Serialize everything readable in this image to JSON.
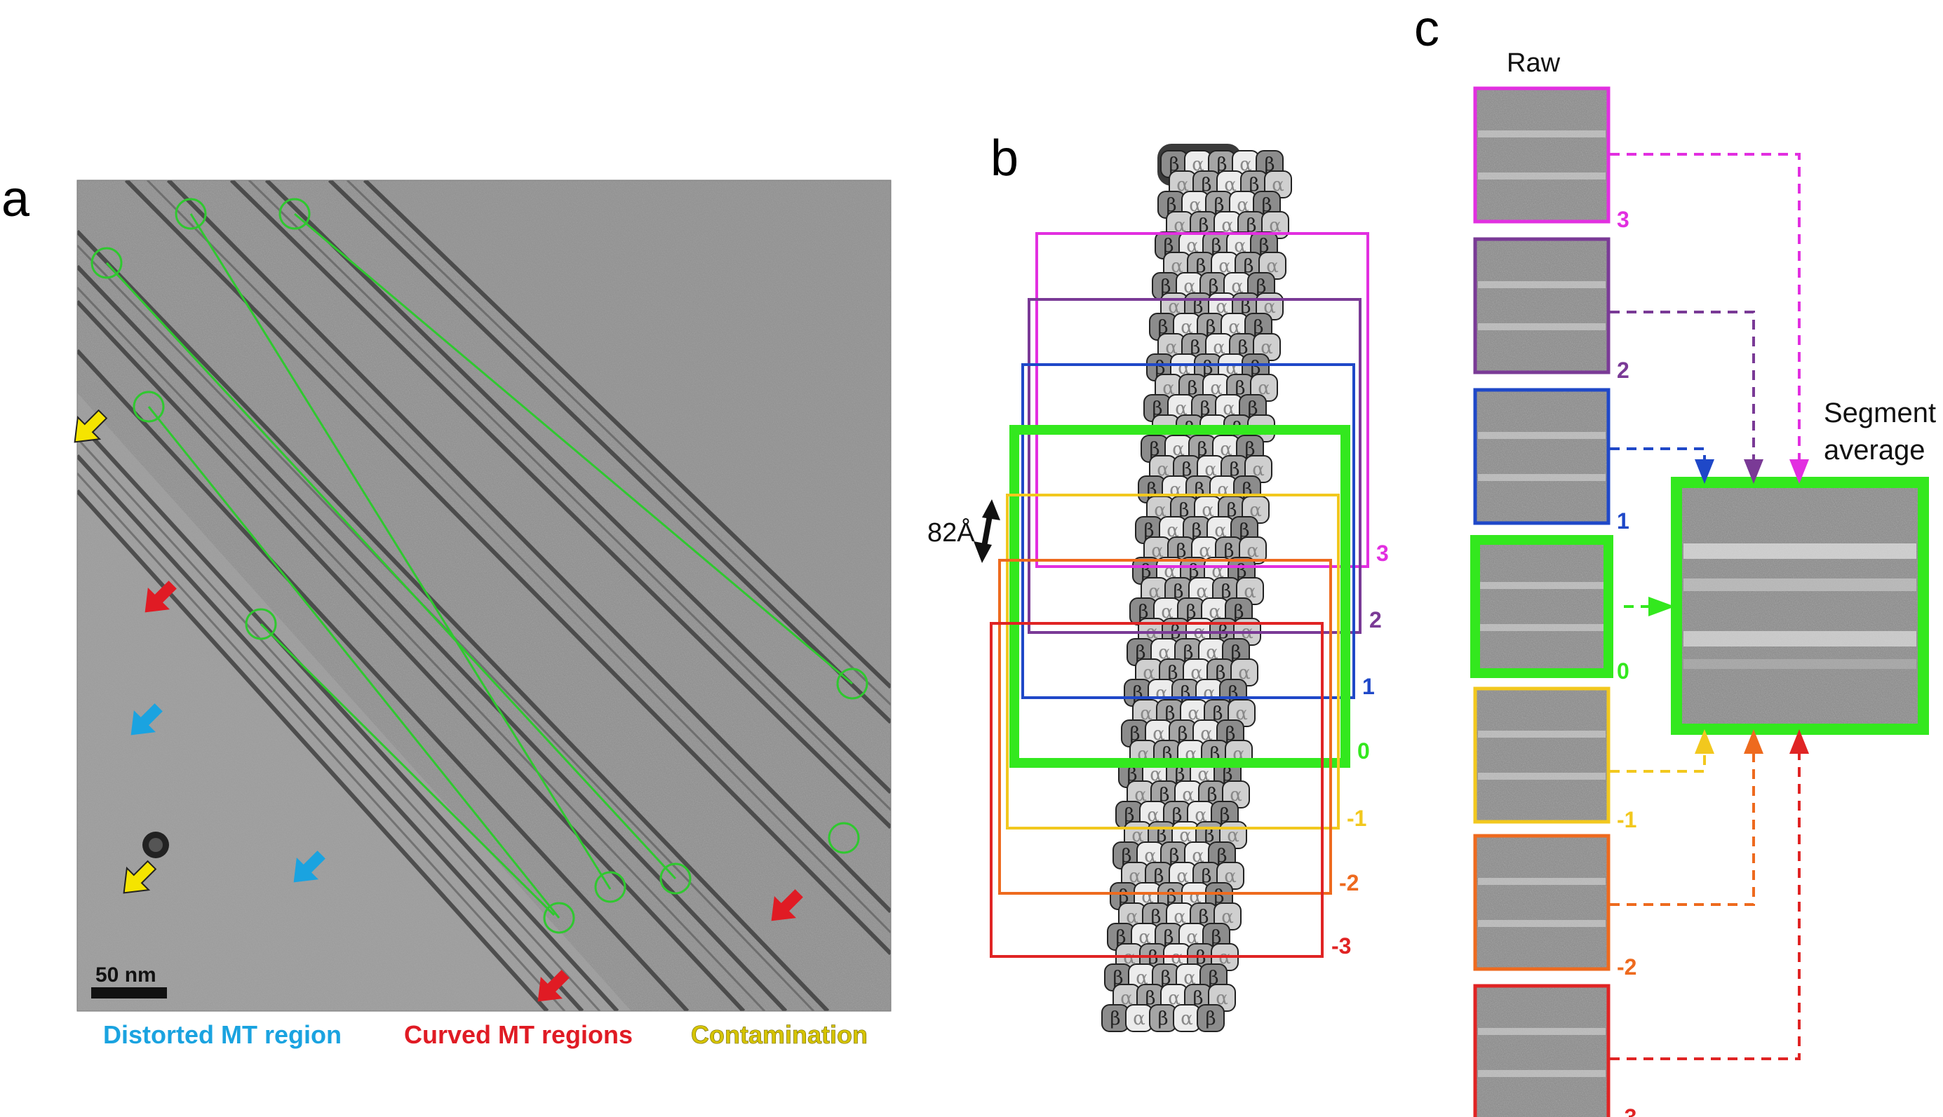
{
  "panels": {
    "a": {
      "label": "a",
      "scale_bar": "50 nm",
      "legend": [
        {
          "text": "Distorted MT region",
          "color": "#1aa3e0"
        },
        {
          "text": "Curved MT regions",
          "color": "#e01b24"
        },
        {
          "text": "Contamination",
          "color": "#d6c400"
        }
      ]
    },
    "b": {
      "label": "b",
      "measure": "82Å",
      "subunits": {
        "alpha": "α",
        "beta": "β"
      },
      "boxes": [
        {
          "id": "3",
          "color": "#e22fe0"
        },
        {
          "id": "2",
          "color": "#7a3a96"
        },
        {
          "id": "1",
          "color": "#1f48c8"
        },
        {
          "id": "0",
          "color": "#33e81e"
        },
        {
          "id": "-1",
          "color": "#f2c81e"
        },
        {
          "id": "-2",
          "color": "#ee6a1e"
        },
        {
          "id": "-3",
          "color": "#e02424"
        }
      ]
    },
    "c": {
      "label": "c",
      "raw_title": "Raw",
      "average_title_line1": "Segment",
      "average_title_line2": "average"
    }
  },
  "colors": {
    "background": "#ffffff",
    "micrograph": "#8e8e8e",
    "mt_trace": "#2fc82f"
  }
}
